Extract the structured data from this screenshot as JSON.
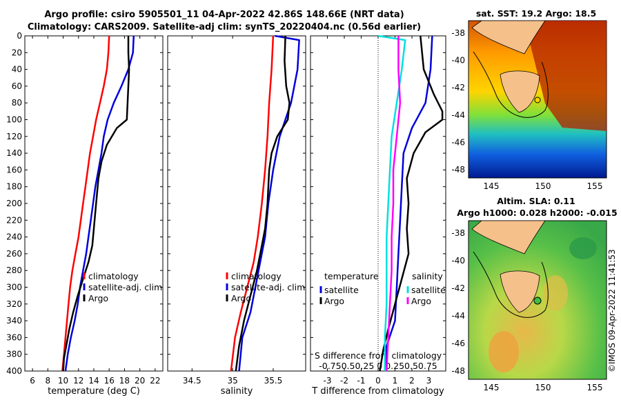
{
  "title_line1": "Argo profile: csiro 5905501_11 04-Apr-2022 42.86S 148.66E (NRT data)",
  "title_line2": "Climatology: CARS2009. Satellite-adj clim: synTS_20220404.nc (0.56d earlier)",
  "sst_title": "sat. SST: 19.2 Argo: 18.5",
  "sla_title_line1": "Altim. SLA: 0.11",
  "sla_title_line2": "Argo h1000: 0.028 h2000: -0.015",
  "stamp": "©IMOS 09-Apr-2022 11:41:53",
  "colors": {
    "climatology": "#ff0000",
    "satellite": "#0000dd",
    "argo": "#000000",
    "sat_salinity": "#00e0e0",
    "argo_salinity": "#ff00ff",
    "land": "#f5c08a"
  },
  "map_y_ticks": [
    "-38",
    "-40",
    "-42",
    "-44",
    "-46",
    "-48"
  ],
  "map_x_ticks": [
    "145",
    "150",
    "155"
  ],
  "chart_data": [
    {
      "type": "line",
      "id": "temp",
      "xlabel": "temperature (deg C)",
      "ylabel": "",
      "xlim": [
        5,
        23
      ],
      "ylim": [
        0,
        400
      ],
      "xticks": [
        6,
        8,
        10,
        12,
        14,
        16,
        18,
        20,
        22
      ],
      "xtick_labels": [
        "6",
        "8",
        "10",
        "12",
        "14",
        "16",
        "18",
        "20",
        "22"
      ],
      "yticks": [
        0,
        20,
        40,
        60,
        80,
        100,
        120,
        140,
        160,
        180,
        200,
        220,
        240,
        260,
        280,
        300,
        320,
        340,
        360,
        380,
        400
      ],
      "ytick_labels": [
        "0",
        "20",
        "40",
        "60",
        "80",
        "100",
        "120",
        "140",
        "160",
        "180",
        "200",
        "220",
        "240",
        "260",
        "280",
        "300",
        "320",
        "340",
        "360",
        "380",
        "400"
      ],
      "legend": [
        "climatology",
        "satellite-adj. clim",
        "Argo"
      ],
      "series": [
        {
          "name": "climatology",
          "color": "#ff0000",
          "points": [
            [
              16.0,
              0
            ],
            [
              15.9,
              20
            ],
            [
              15.7,
              40
            ],
            [
              15.3,
              60
            ],
            [
              14.8,
              80
            ],
            [
              14.3,
              100
            ],
            [
              13.9,
              120
            ],
            [
              13.5,
              140
            ],
            [
              13.2,
              160
            ],
            [
              12.9,
              180
            ],
            [
              12.6,
              200
            ],
            [
              12.3,
              220
            ],
            [
              12.0,
              240
            ],
            [
              11.6,
              260
            ],
            [
              11.2,
              280
            ],
            [
              10.9,
              300
            ],
            [
              10.7,
              320
            ],
            [
              10.5,
              340
            ],
            [
              10.3,
              360
            ],
            [
              10.1,
              380
            ],
            [
              9.9,
              400
            ]
          ]
        },
        {
          "name": "satellite-adj. clim",
          "color": "#0000dd",
          "points": [
            [
              19.2,
              0
            ],
            [
              19.1,
              20
            ],
            [
              18.5,
              40
            ],
            [
              17.6,
              60
            ],
            [
              16.6,
              80
            ],
            [
              15.8,
              100
            ],
            [
              15.3,
              120
            ],
            [
              15.0,
              140
            ],
            [
              14.6,
              160
            ],
            [
              14.2,
              180
            ],
            [
              13.9,
              200
            ],
            [
              13.6,
              220
            ],
            [
              13.3,
              240
            ],
            [
              13.0,
              260
            ],
            [
              12.6,
              280
            ],
            [
              12.2,
              300
            ],
            [
              11.9,
              320
            ],
            [
              11.5,
              340
            ],
            [
              11.0,
              360
            ],
            [
              10.6,
              380
            ],
            [
              10.3,
              400
            ]
          ]
        },
        {
          "name": "Argo",
          "color": "#000000",
          "points": [
            [
              18.5,
              0
            ],
            [
              18.5,
              20
            ],
            [
              18.6,
              40
            ],
            [
              18.5,
              60
            ],
            [
              18.4,
              80
            ],
            [
              18.3,
              100
            ],
            [
              17.0,
              110
            ],
            [
              15.7,
              130
            ],
            [
              15.0,
              150
            ],
            [
              14.6,
              170
            ],
            [
              14.4,
              190
            ],
            [
              14.2,
              210
            ],
            [
              14.0,
              230
            ],
            [
              13.8,
              250
            ],
            [
              13.3,
              270
            ],
            [
              12.6,
              290
            ],
            [
              11.9,
              310
            ],
            [
              11.3,
              330
            ],
            [
              10.8,
              350
            ],
            [
              10.4,
              370
            ],
            [
              10.1,
              385
            ],
            [
              10.0,
              400
            ]
          ]
        }
      ]
    },
    {
      "type": "line",
      "id": "salt",
      "xlabel": "salinity",
      "ylabel": "",
      "xlim": [
        34.2,
        35.9
      ],
      "ylim": [
        0,
        400
      ],
      "xticks": [
        34.5,
        35,
        35.5
      ],
      "xtick_labels": [
        "34.5",
        "35",
        "35.5"
      ],
      "legend": [
        "climatology",
        "satellite-adj. clim",
        "Argo"
      ],
      "series": [
        {
          "name": "climatology",
          "color": "#ff0000",
          "points": [
            [
              35.5,
              0
            ],
            [
              35.48,
              40
            ],
            [
              35.45,
              80
            ],
            [
              35.43,
              120
            ],
            [
              35.4,
              160
            ],
            [
              35.36,
              200
            ],
            [
              35.31,
              240
            ],
            [
              35.26,
              270
            ],
            [
              35.18,
              300
            ],
            [
              35.1,
              330
            ],
            [
              35.03,
              360
            ],
            [
              34.98,
              400
            ]
          ]
        },
        {
          "name": "satellite-adj. clim",
          "color": "#0000dd",
          "points": [
            [
              35.52,
              0
            ],
            [
              35.82,
              5
            ],
            [
              35.8,
              40
            ],
            [
              35.72,
              80
            ],
            [
              35.58,
              120
            ],
            [
              35.5,
              160
            ],
            [
              35.44,
              200
            ],
            [
              35.4,
              240
            ],
            [
              35.34,
              270
            ],
            [
              35.28,
              300
            ],
            [
              35.22,
              330
            ],
            [
              35.12,
              360
            ],
            [
              35.08,
              400
            ]
          ]
        },
        {
          "name": "Argo",
          "color": "#000000",
          "points": [
            [
              35.65,
              0
            ],
            [
              35.64,
              30
            ],
            [
              35.66,
              60
            ],
            [
              35.7,
              80
            ],
            [
              35.68,
              100
            ],
            [
              35.55,
              120
            ],
            [
              35.48,
              140
            ],
            [
              35.45,
              160
            ],
            [
              35.43,
              200
            ],
            [
              35.4,
              230
            ],
            [
              35.36,
              250
            ],
            [
              35.3,
              280
            ],
            [
              35.22,
              310
            ],
            [
              35.14,
              340
            ],
            [
              35.08,
              370
            ],
            [
              35.04,
              400
            ]
          ]
        }
      ]
    },
    {
      "type": "line",
      "id": "diff",
      "xlabel": "T difference from climatology",
      "x2label": "S difference from climatology",
      "xlim": [
        -4,
        4
      ],
      "ylim": [
        0,
        400
      ],
      "xticks": [
        -3,
        -2,
        -1,
        0,
        1,
        2,
        3
      ],
      "xtick_labels": [
        "-3",
        "-2",
        "-1",
        "0",
        "1",
        "2",
        "3"
      ],
      "x2ticks_text": "-0.750.50.25 0 0.250.50.75",
      "legend_left_title": "temperature",
      "legend_right_title": "salinity",
      "legend_left": [
        "satellite",
        "Argo"
      ],
      "legend_right": [
        "satellite",
        "Argo"
      ],
      "series": [
        {
          "name": "T satellite",
          "color": "#0000dd",
          "points": [
            [
              3.2,
              0
            ],
            [
              3.1,
              40
            ],
            [
              2.8,
              80
            ],
            [
              2.0,
              110
            ],
            [
              1.5,
              140
            ],
            [
              1.4,
              180
            ],
            [
              1.3,
              220
            ],
            [
              1.2,
              260
            ],
            [
              1.1,
              300
            ],
            [
              1.0,
              340
            ],
            [
              0.5,
              370
            ],
            [
              0.4,
              400
            ]
          ]
        },
        {
          "name": "T Argo",
          "color": "#000000",
          "points": [
            [
              2.5,
              0
            ],
            [
              2.7,
              40
            ],
            [
              3.3,
              70
            ],
            [
              3.8,
              90
            ],
            [
              3.8,
              100
            ],
            [
              2.8,
              115
            ],
            [
              2.1,
              140
            ],
            [
              1.7,
              170
            ],
            [
              1.8,
              200
            ],
            [
              1.7,
              230
            ],
            [
              1.8,
              260
            ],
            [
              1.4,
              290
            ],
            [
              1.0,
              320
            ],
            [
              0.6,
              350
            ],
            [
              0.3,
              375
            ],
            [
              0.1,
              400
            ]
          ]
        },
        {
          "name": "S satellite",
          "color": "#00e0e0",
          "points": [
            [
              0.0,
              0
            ],
            [
              1.6,
              5
            ],
            [
              1.4,
              40
            ],
            [
              1.1,
              80
            ],
            [
              0.8,
              120
            ],
            [
              0.7,
              160
            ],
            [
              0.6,
              200
            ],
            [
              0.5,
              240
            ],
            [
              0.5,
              280
            ],
            [
              0.5,
              320
            ],
            [
              0.4,
              360
            ],
            [
              0.4,
              400
            ]
          ]
        },
        {
          "name": "S Argo",
          "color": "#ff00ff",
          "points": [
            [
              1.2,
              0
            ],
            [
              1.2,
              40
            ],
            [
              1.3,
              80
            ],
            [
              1.1,
              120
            ],
            [
              0.9,
              160
            ],
            [
              0.9,
              200
            ],
            [
              0.8,
              240
            ],
            [
              0.8,
              280
            ],
            [
              0.7,
              320
            ],
            [
              0.6,
              360
            ],
            [
              0.5,
              400
            ]
          ]
        }
      ]
    }
  ]
}
